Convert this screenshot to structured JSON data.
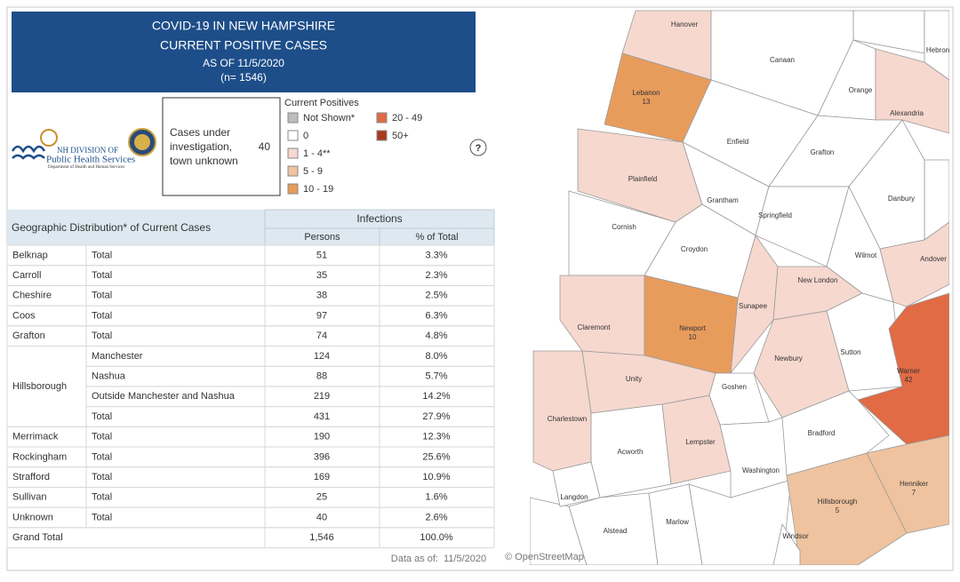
{
  "header": {
    "lines": [
      "COVID-19 IN NEW HAMPSHIRE",
      "CURRENT POSITIVE CASES",
      "AS OF 11/5/2020",
      "(n= 1546)"
    ]
  },
  "logo": {
    "lines": [
      "NH DIVISION OF",
      "Public Health Services",
      "Department of Health and Human Services"
    ]
  },
  "unknown_box": {
    "lines": [
      "Cases under",
      "investigation,",
      "town unknown"
    ],
    "value": "40"
  },
  "legend": {
    "title": "Current Positives",
    "items": [
      {
        "label": "Not Shown*",
        "color": "#bdbdbd"
      },
      {
        "label": "0",
        "color": "#ffffff"
      },
      {
        "label": "1 - 4**",
        "color": "#f6d8cf"
      },
      {
        "label": "5 - 9",
        "color": "#efc39f"
      },
      {
        "label": "10 - 19",
        "color": "#e89c5c"
      },
      {
        "label": "20 - 49",
        "color": "#e06b45"
      },
      {
        "label": "50+",
        "color": "#a93a1e"
      }
    ]
  },
  "help": "?",
  "table": {
    "title": "Geographic Distribution* of Current Cases",
    "group_header": "Infections",
    "columns": [
      "Persons",
      "% of Total"
    ],
    "groups": [
      {
        "county": "Belknap",
        "rows": [
          [
            "Total",
            "51",
            "3.3%"
          ]
        ]
      },
      {
        "county": "Carroll",
        "rows": [
          [
            "Total",
            "35",
            "2.3%"
          ]
        ]
      },
      {
        "county": "Cheshire",
        "rows": [
          [
            "Total",
            "38",
            "2.5%"
          ]
        ]
      },
      {
        "county": "Coos",
        "rows": [
          [
            "Total",
            "97",
            "6.3%"
          ]
        ]
      },
      {
        "county": "Grafton",
        "rows": [
          [
            "Total",
            "74",
            "4.8%"
          ]
        ]
      },
      {
        "county": "Hillsborough",
        "rows": [
          [
            "Manchester",
            "124",
            "8.0%"
          ],
          [
            "Nashua",
            "88",
            "5.7%"
          ],
          [
            "Outside Manchester and Nashua",
            "219",
            "14.2%"
          ],
          [
            "Total",
            "431",
            "27.9%"
          ]
        ]
      },
      {
        "county": "Merrimack",
        "rows": [
          [
            "Total",
            "190",
            "12.3%"
          ]
        ]
      },
      {
        "county": "Rockingham",
        "rows": [
          [
            "Total",
            "396",
            "25.6%"
          ]
        ]
      },
      {
        "county": "Strafford",
        "rows": [
          [
            "Total",
            "169",
            "10.9%"
          ]
        ]
      },
      {
        "county": "Sullivan",
        "rows": [
          [
            "Total",
            "25",
            "1.6%"
          ]
        ]
      },
      {
        "county": "Unknown",
        "rows": [
          [
            "Total",
            "40",
            "2.6%"
          ]
        ]
      }
    ],
    "grand_total": [
      "Grand Total",
      "1,546",
      "100.0%"
    ]
  },
  "footer": {
    "label": "Data as of:",
    "date": "11/5/2020",
    "credit": "© OpenStreetMap"
  },
  "map": {
    "towns": [
      {
        "name": "Hanover",
        "color": "#f6d8cf"
      },
      {
        "name": "Canaan",
        "color": "#ffffff"
      },
      {
        "name": "Orange",
        "color": "#ffffff"
      },
      {
        "name": "Hebron",
        "color": "#ffffff"
      },
      {
        "name": "Alexandria",
        "color": "#f6d8cf"
      },
      {
        "name": "Lebanon",
        "color": "#e89c5c",
        "count": "13"
      },
      {
        "name": "Enfield",
        "color": "#ffffff"
      },
      {
        "name": "Grafton",
        "color": "#ffffff"
      },
      {
        "name": "Plainfield",
        "color": "#f6d8cf"
      },
      {
        "name": "Grantham",
        "color": "#ffffff"
      },
      {
        "name": "Springfield",
        "color": "#ffffff"
      },
      {
        "name": "Danbury",
        "color": "#ffffff"
      },
      {
        "name": "Cornish",
        "color": "#ffffff"
      },
      {
        "name": "Croydon",
        "color": "#ffffff"
      },
      {
        "name": "Wilmot",
        "color": "#ffffff"
      },
      {
        "name": "Andover",
        "color": "#f6d8cf"
      },
      {
        "name": "Sunapee",
        "color": "#f6d8cf"
      },
      {
        "name": "New London",
        "color": "#f6d8cf"
      },
      {
        "name": "Claremont",
        "color": "#f6d8cf"
      },
      {
        "name": "Newport",
        "color": "#e89c5c",
        "count": "10"
      },
      {
        "name": "Newbury",
        "color": "#f6d8cf"
      },
      {
        "name": "Sutton",
        "color": "#ffffff"
      },
      {
        "name": "Warner",
        "color": "#e06b45",
        "count": "42"
      },
      {
        "name": "Unity",
        "color": "#f6d8cf"
      },
      {
        "name": "Goshen",
        "color": "#ffffff"
      },
      {
        "name": "Charlestown",
        "color": "#f6d8cf"
      },
      {
        "name": "Acworth",
        "color": "#ffffff"
      },
      {
        "name": "Lempster",
        "color": "#f6d8cf"
      },
      {
        "name": "Washington",
        "color": "#ffffff"
      },
      {
        "name": "Bradford",
        "color": "#ffffff"
      },
      {
        "name": "Henniker",
        "color": "#efc39f",
        "count": "7"
      },
      {
        "name": "Hillsborough",
        "color": "#efc39f",
        "count": "5"
      },
      {
        "name": "Langdon",
        "color": "#ffffff"
      },
      {
        "name": "Alstead",
        "color": "#ffffff"
      },
      {
        "name": "Marlow",
        "color": "#ffffff"
      },
      {
        "name": "Windsor",
        "color": "#ffffff"
      }
    ]
  }
}
